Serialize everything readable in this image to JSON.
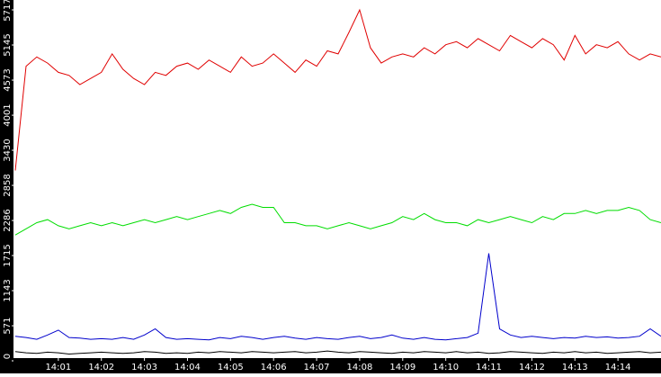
{
  "chart_data": {
    "type": "line",
    "categories": [
      null,
      null,
      null,
      null,
      "14:01",
      null,
      null,
      null,
      "14:02",
      null,
      null,
      null,
      "14:03",
      null,
      null,
      null,
      "14:04",
      null,
      null,
      null,
      "14:05",
      null,
      null,
      null,
      "14:06",
      null,
      null,
      null,
      "14:07",
      null,
      null,
      null,
      "14:08",
      null,
      null,
      null,
      "14:09",
      null,
      null,
      null,
      "14:10",
      null,
      null,
      null,
      "14:11",
      null,
      null,
      null,
      "14:12",
      null,
      null,
      null,
      "14:13",
      null,
      null,
      null,
      "14:14",
      null,
      null,
      null,
      null
    ],
    "series": [
      {
        "color": "#e00000",
        "values": [
          3100,
          4800,
          4950,
          4850,
          4700,
          4650,
          4500,
          4600,
          4700,
          5000,
          4750,
          4600,
          4500,
          4700,
          4650,
          4800,
          4850,
          4750,
          4900,
          4800,
          4700,
          4950,
          4800,
          4850,
          5000,
          4850,
          4700,
          4900,
          4800,
          5050,
          5000,
          5350,
          5717,
          5100,
          4850,
          4950,
          5000,
          4950,
          5100,
          5000,
          5150,
          5200,
          5100,
          5250,
          5150,
          5050,
          5300,
          5200,
          5100,
          5250,
          5150,
          4900,
          5300,
          5000,
          5150,
          5100,
          5200,
          5000,
          4900,
          5000,
          4950
        ]
      },
      {
        "color": "#00dd00",
        "values": [
          2050,
          2150,
          2250,
          2300,
          2200,
          2150,
          2200,
          2250,
          2200,
          2250,
          2200,
          2250,
          2300,
          2250,
          2300,
          2350,
          2300,
          2350,
          2400,
          2450,
          2400,
          2500,
          2550,
          2500,
          2500,
          2250,
          2250,
          2200,
          2200,
          2150,
          2200,
          2250,
          2200,
          2150,
          2200,
          2250,
          2350,
          2300,
          2400,
          2300,
          2250,
          2250,
          2200,
          2300,
          2250,
          2300,
          2350,
          2300,
          2250,
          2350,
          2300,
          2400,
          2400,
          2450,
          2400,
          2450,
          2450,
          2500,
          2450,
          2300,
          2250
        ]
      },
      {
        "color": "#0000cc",
        "values": [
          400,
          380,
          350,
          420,
          500,
          380,
          370,
          350,
          360,
          350,
          380,
          350,
          420,
          520,
          380,
          350,
          360,
          350,
          340,
          380,
          360,
          400,
          380,
          350,
          380,
          400,
          370,
          350,
          380,
          360,
          350,
          380,
          400,
          360,
          380,
          420,
          370,
          350,
          380,
          350,
          340,
          360,
          380,
          450,
          1750,
          520,
          420,
          380,
          400,
          380,
          360,
          380,
          370,
          400,
          380,
          390,
          370,
          380,
          400,
          520,
          400
        ]
      },
      {
        "color": "#000000",
        "values": [
          150,
          130,
          120,
          140,
          130,
          110,
          120,
          130,
          140,
          130,
          120,
          130,
          150,
          140,
          120,
          130,
          120,
          140,
          130,
          150,
          140,
          130,
          150,
          140,
          130,
          140,
          150,
          130,
          140,
          160,
          140,
          130,
          150,
          140,
          130,
          120,
          140,
          130,
          150,
          140,
          130,
          150,
          130,
          140,
          120,
          130,
          150,
          140,
          130,
          120,
          140,
          130,
          150,
          130,
          140,
          120,
          130,
          140,
          150,
          130,
          140
        ]
      }
    ],
    "ylim": [
      0,
      5717
    ],
    "yticks": [
      0,
      571,
      1143,
      1715,
      2286,
      2858,
      3430,
      4001,
      4573,
      5145,
      5717
    ]
  }
}
